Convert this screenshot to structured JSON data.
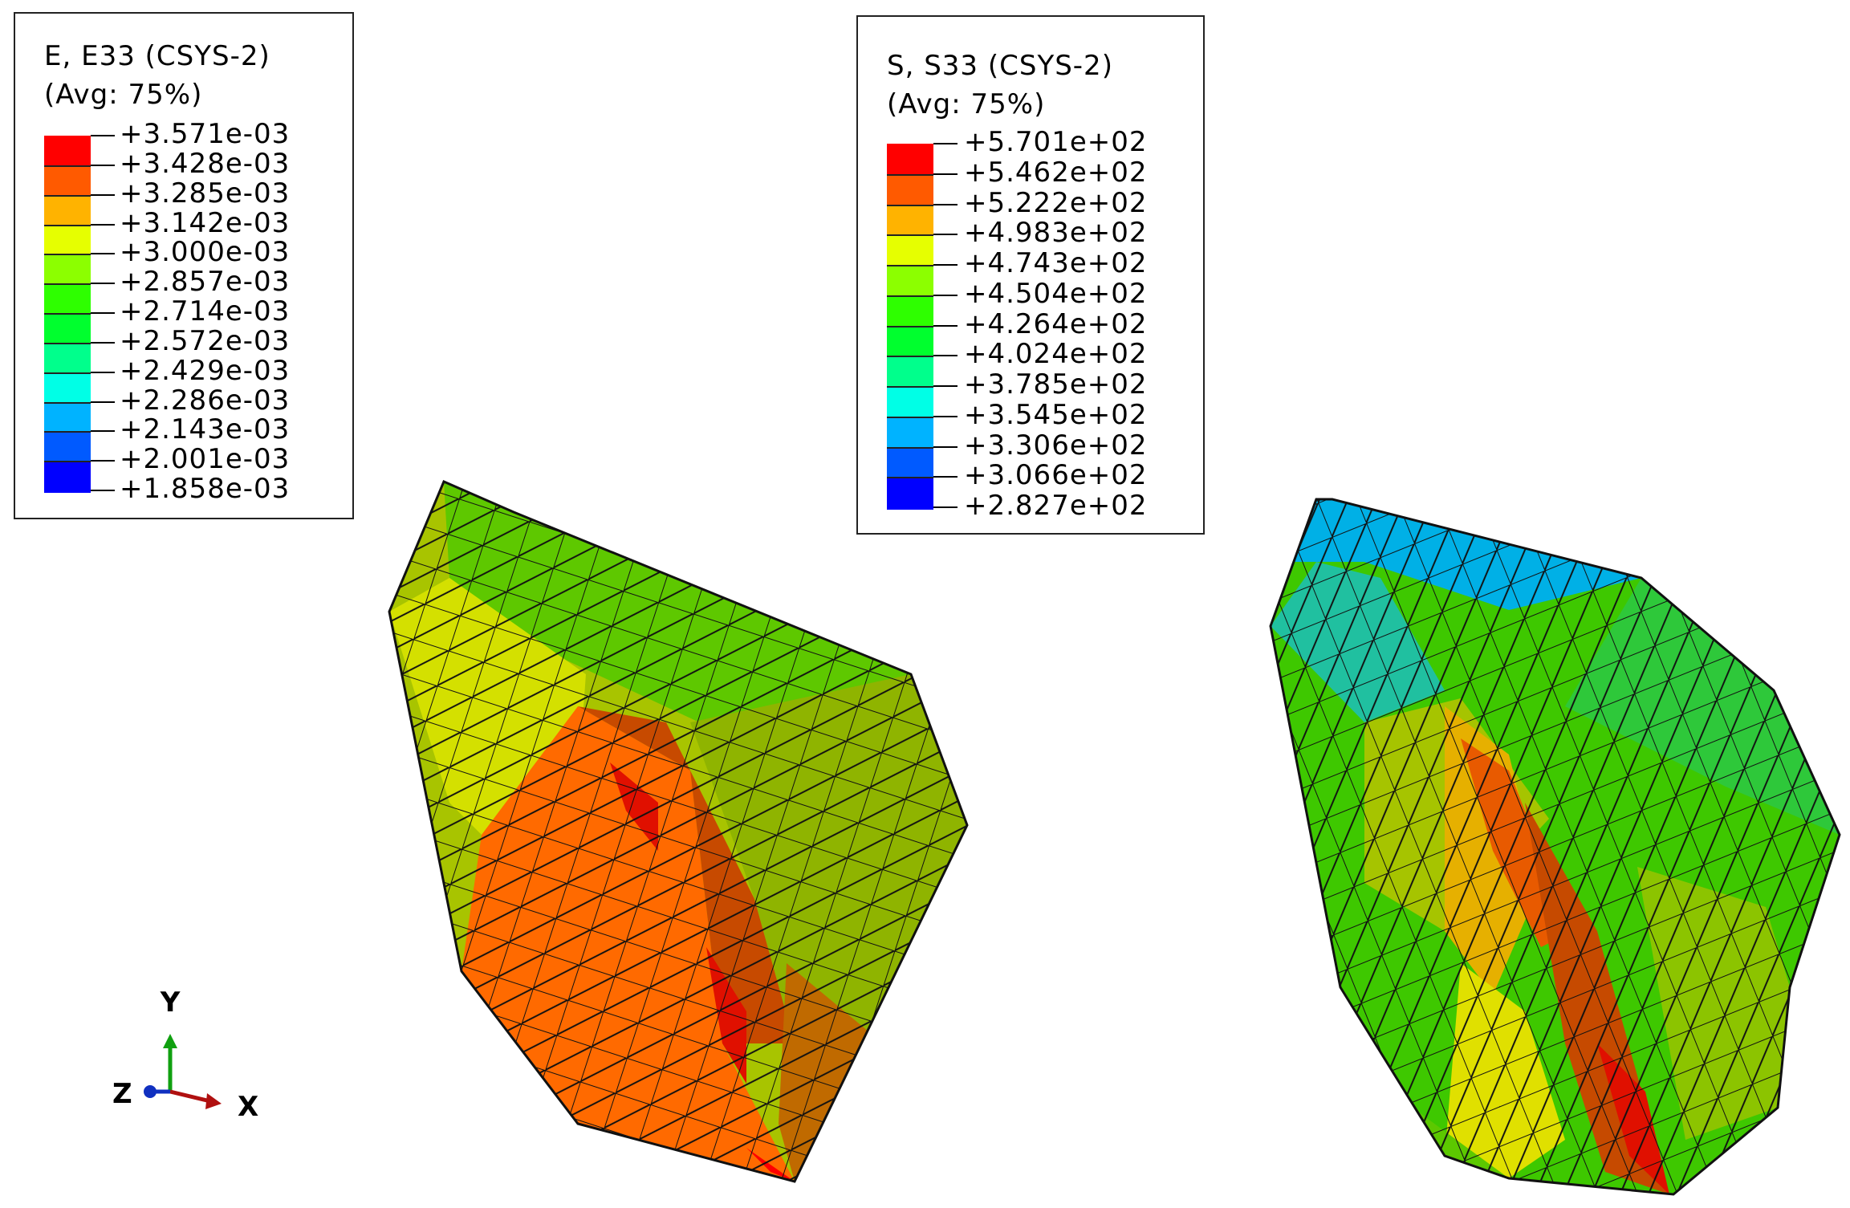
{
  "legends": [
    {
      "title_line1": "E, E33 (CSYS-2)",
      "title_line2": "(Avg: 75%)",
      "labels": [
        "+3.571e-03",
        "+3.428e-03",
        "+3.285e-03",
        "+3.142e-03",
        "+3.000e-03",
        "+2.857e-03",
        "+2.714e-03",
        "+2.572e-03",
        "+2.429e-03",
        "+2.286e-03",
        "+2.143e-03",
        "+2.001e-03",
        "+1.858e-03"
      ]
    },
    {
      "title_line1": "S, S33 (CSYS-2)",
      "title_line2": "(Avg: 75%)",
      "labels": [
        "+5.701e+02",
        "+5.462e+02",
        "+5.222e+02",
        "+4.983e+02",
        "+4.743e+02",
        "+4.504e+02",
        "+4.264e+02",
        "+4.024e+02",
        "+3.785e+02",
        "+3.545e+02",
        "+3.306e+02",
        "+3.066e+02",
        "+2.827e+02"
      ]
    }
  ],
  "band_colors": [
    "#ff0000",
    "#ff5a00",
    "#ffb300",
    "#e6ff00",
    "#8cff00",
    "#2eff00",
    "#00ff2e",
    "#00ff8c",
    "#00ffe6",
    "#00b3ff",
    "#005aff",
    "#0000ff"
  ],
  "triad": {
    "y": "Y",
    "x": "X",
    "z": "Z"
  }
}
